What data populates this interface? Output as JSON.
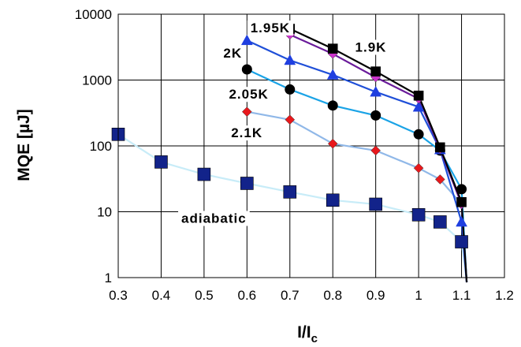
{
  "chart_data": {
    "type": "line",
    "xlabel": "I/I",
    "xlabel_sub": "c",
    "ylabel": "MQE [µJ]",
    "xlim": [
      0.3,
      1.2
    ],
    "ylim": [
      1,
      10000
    ],
    "y_scale": "log",
    "grid": true,
    "x_ticks": [
      "0.3",
      "0.4",
      "0.5",
      "0.6",
      "0.7",
      "0.8",
      "0.9",
      "1",
      "1.1",
      "1.2"
    ],
    "y_ticks": [
      "1",
      "10",
      "100",
      "1000",
      "10000"
    ],
    "series": [
      {
        "name": "1.9K",
        "color": "#000000",
        "marker": "square",
        "marker_color": "#000000",
        "x": [
          0.7,
          0.8,
          0.9,
          1.0,
          1.05,
          1.1
        ],
        "y": [
          6000,
          3000,
          1350,
          580,
          95,
          14
        ]
      },
      {
        "name": "1.95K",
        "color": "#6a1b9a",
        "marker": "diamond",
        "marker_color": "#cc33cc",
        "x": [
          0.7,
          0.8,
          0.9,
          1.0,
          1.05,
          1.1
        ],
        "y": [
          4900,
          2500,
          1100,
          520,
          90,
          13
        ]
      },
      {
        "name": "2K",
        "color": "#1f4fd8",
        "marker": "triangle",
        "marker_color": "#1f3fe0",
        "x": [
          0.6,
          0.7,
          0.8,
          0.9,
          1.0,
          1.05,
          1.1
        ],
        "y": [
          4000,
          2000,
          1200,
          660,
          390,
          88,
          7
        ]
      },
      {
        "name": "2.05K",
        "color": "#1aa3e6",
        "marker": "circle",
        "marker_color": "#000000",
        "x": [
          0.6,
          0.7,
          0.8,
          0.9,
          1.0,
          1.05,
          1.1
        ],
        "y": [
          1450,
          720,
          410,
          290,
          150,
          85,
          22
        ]
      },
      {
        "name": "2.1K",
        "color": "#90b8e8",
        "marker": "diamond",
        "marker_color": "#e8181c",
        "x": [
          0.6,
          0.7,
          0.8,
          0.9,
          1.0,
          1.05,
          1.1
        ],
        "y": [
          330,
          250,
          108,
          85,
          46,
          31,
          13
        ]
      },
      {
        "name": "adiabatic",
        "color": "#c8ecf8",
        "marker": "square",
        "marker_color": "#12238a",
        "x": [
          0.3,
          0.4,
          0.5,
          0.6,
          0.7,
          0.8,
          0.9,
          1.0,
          1.05,
          1.1
        ],
        "y": [
          150,
          57,
          37,
          27,
          20,
          15,
          13,
          9,
          7,
          3.5
        ]
      }
    ],
    "annotations": [
      {
        "text": "1.95K",
        "x": 0.608,
        "y": 5300
      },
      {
        "text": "1.9K",
        "x": 0.852,
        "y": 2700
      },
      {
        "text": "2K",
        "x": 0.545,
        "y": 2200
      },
      {
        "text": "2.05K",
        "x": 0.558,
        "y": 520
      },
      {
        "text": "2.1K",
        "x": 0.563,
        "y": 135
      },
      {
        "text": "adiabatic",
        "x": 0.447,
        "y": 6.8
      }
    ]
  }
}
